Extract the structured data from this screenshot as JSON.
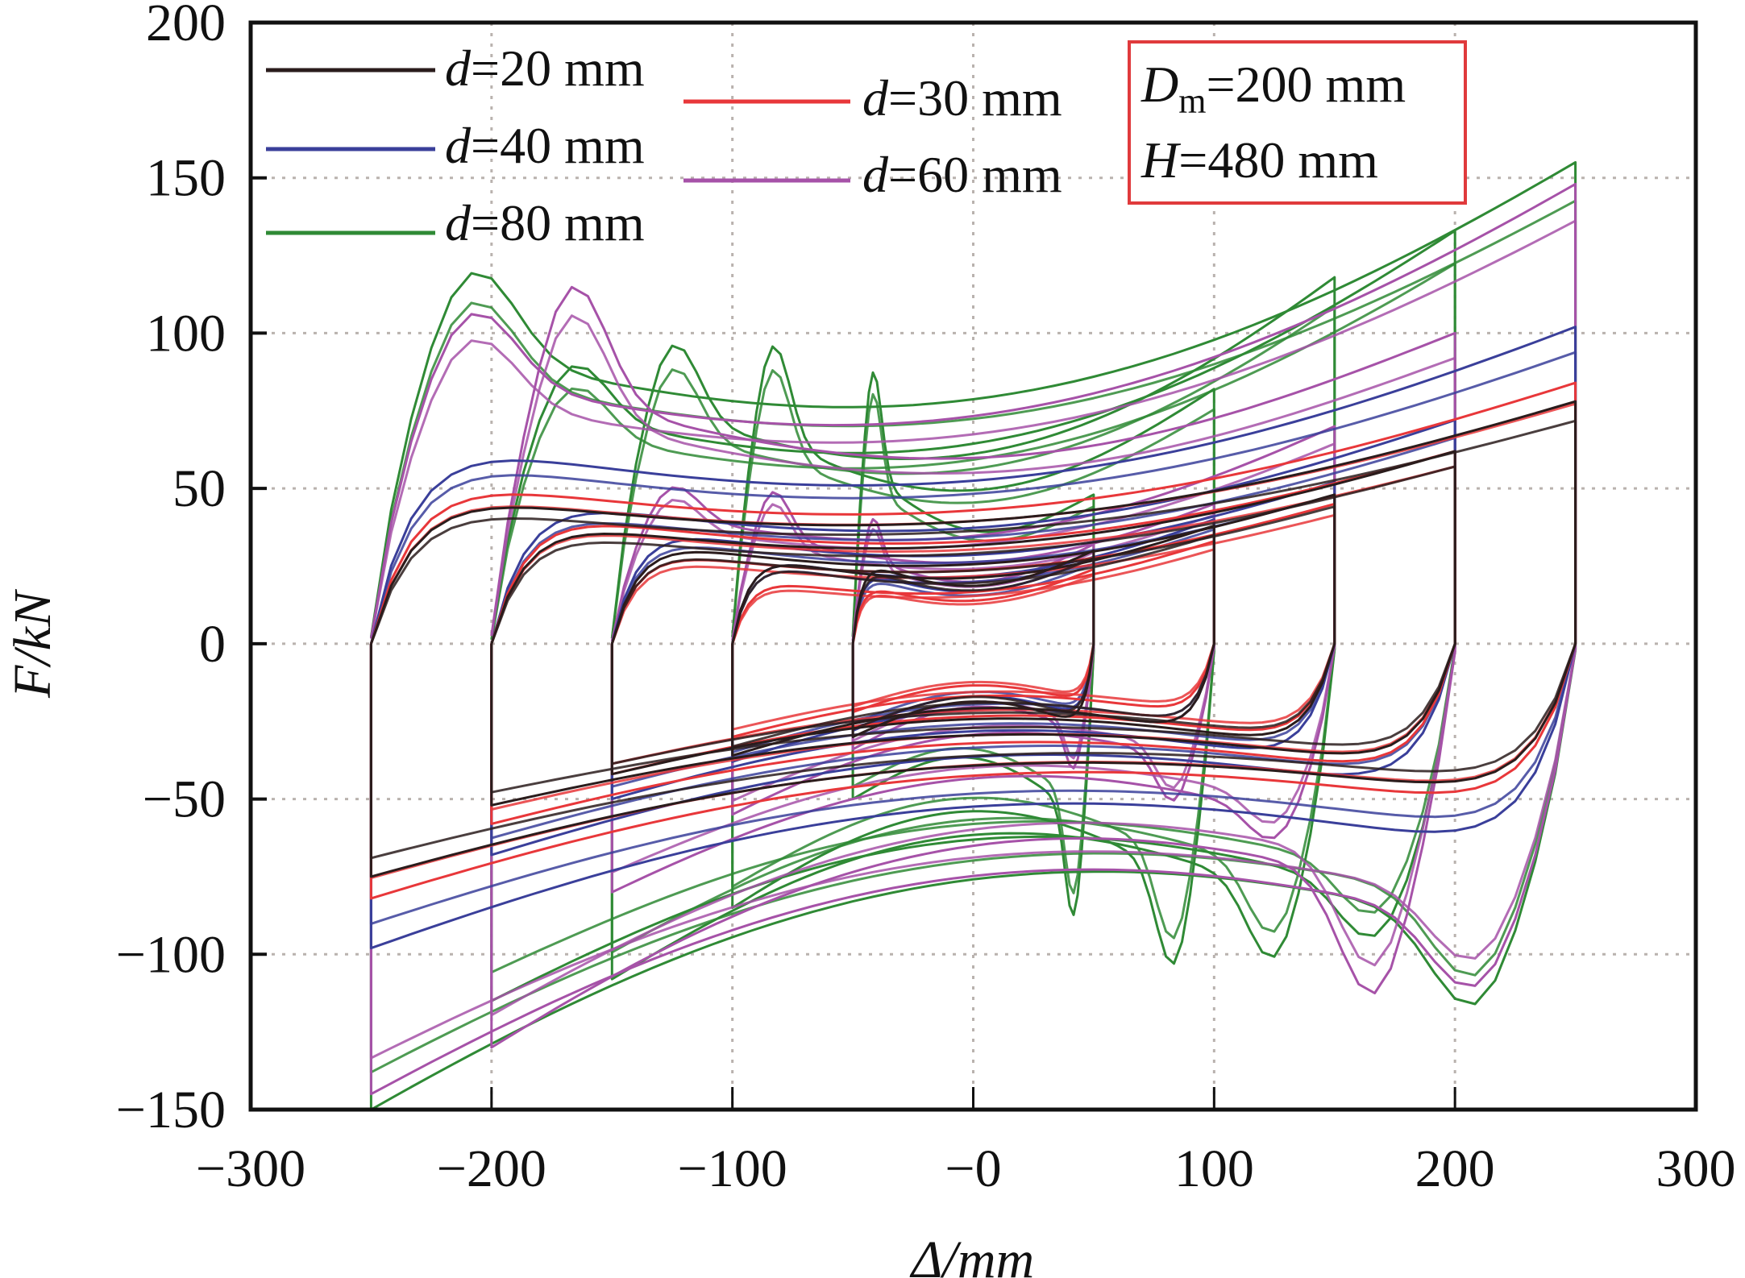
{
  "chart_data": {
    "type": "line",
    "title": "",
    "xlabel": "Δ/mm",
    "ylabel": "F/kN",
    "xlim": [
      -300,
      300
    ],
    "ylim": [
      -150,
      200
    ],
    "xticks": [
      -300,
      -200,
      -100,
      0,
      100,
      200,
      300
    ],
    "xtick_labels": [
      "−300",
      "−200",
      "−100",
      "−0",
      "100",
      "200",
      "300"
    ],
    "yticks": [
      200,
      150,
      100,
      50,
      0,
      -50,
      -100,
      -150
    ],
    "ytick_labels": [
      "200",
      "150",
      "100",
      "50",
      "0",
      "−50",
      "−100",
      "−150"
    ],
    "grid": true,
    "grid_x": [
      -200,
      -100,
      0,
      100,
      200
    ],
    "grid_y": [
      150,
      100,
      50,
      0,
      -50,
      -100
    ],
    "legend_position": "top-left",
    "annotation": {
      "line1_main": "D",
      "line1_sub": "m",
      "line1_rest": "=200 mm",
      "line2_italic": "H",
      "line2_rest": "=480 mm",
      "border_color": "#e03a3c"
    },
    "loop_amplitudes_mm": [
      50,
      100,
      150,
      200,
      250
    ],
    "series": [
      {
        "name": "d=20 mm",
        "d_label_italic": "d",
        "d_label_rest": "=20 mm",
        "color": "#2a1c1c",
        "loops": [
          {
            "amp": 50,
            "pos_peak": 30,
            "yield": 28,
            "neg_peak": -30,
            "neg_yield": -28
          },
          {
            "amp": 100,
            "pos_peak": 38,
            "yield": 30,
            "neg_peak": -36,
            "neg_yield": -30
          },
          {
            "amp": 150,
            "pos_peak": 48,
            "yield": 35,
            "neg_peak": -42,
            "neg_yield": -35
          },
          {
            "amp": 200,
            "pos_peak": 62,
            "yield": 42,
            "neg_peak": -52,
            "neg_yield": -42
          },
          {
            "amp": 250,
            "pos_peak": 78,
            "yield": 52,
            "neg_peak": -75,
            "neg_yield": -53
          }
        ]
      },
      {
        "name": "d=30 mm",
        "d_label_italic": "d",
        "d_label_rest": "=30 mm",
        "color": "#e8373a",
        "loops": [
          {
            "amp": 50,
            "pos_peak": 24,
            "yield": 20,
            "neg_peak": -22,
            "neg_yield": -20
          },
          {
            "amp": 100,
            "pos_peak": 33,
            "yield": 22,
            "neg_peak": -30,
            "neg_yield": -24
          },
          {
            "amp": 150,
            "pos_peak": 45,
            "yield": 32,
            "neg_peak": -42,
            "neg_yield": -33
          },
          {
            "amp": 200,
            "pos_peak": 62,
            "yield": 45,
            "neg_peak": -58,
            "neg_yield": -45
          },
          {
            "amp": 250,
            "pos_peak": 84,
            "yield": 57,
            "neg_peak": -82,
            "neg_yield": -57
          }
        ]
      },
      {
        "name": "d=40 mm",
        "d_label_italic": "d",
        "d_label_rest": "=40 mm",
        "color": "#3a3f9a",
        "loops": [
          {
            "amp": 50,
            "pos_peak": 28,
            "yield": 25,
            "neg_peak": -28,
            "neg_yield": -25
          },
          {
            "amp": 100,
            "pos_peak": 40,
            "yield": 30,
            "neg_peak": -38,
            "neg_yield": -30
          },
          {
            "amp": 150,
            "pos_peak": 52,
            "yield": 40,
            "neg_peak": -50,
            "neg_yield": -40
          },
          {
            "amp": 200,
            "pos_peak": 72,
            "yield": 50,
            "neg_peak": -68,
            "neg_yield": -50
          },
          {
            "amp": 250,
            "pos_peak": 102,
            "yield": 70,
            "neg_peak": -98,
            "neg_yield": -72
          }
        ]
      },
      {
        "name": "d=60 mm",
        "d_label_italic": "d",
        "d_label_rest": "=60 mm",
        "color": "#a652a8",
        "loops": [
          {
            "amp": 50,
            "pos_peak": 32,
            "yield": 30,
            "neg_peak": -34,
            "neg_yield": -30
          },
          {
            "amp": 100,
            "pos_peak": 45,
            "yield": 38,
            "neg_peak": -55,
            "neg_yield": -40
          },
          {
            "amp": 150,
            "pos_peak": 70,
            "yield": 45,
            "neg_peak": -80,
            "neg_yield": -60
          },
          {
            "amp": 200,
            "pos_peak": 100,
            "yield": 88,
            "neg_peak": -130,
            "neg_yield": -85
          },
          {
            "amp": 250,
            "pos_peak": 148,
            "yield": 95,
            "neg_peak": -145,
            "neg_yield": -100
          }
        ]
      },
      {
        "name": "d=80 mm",
        "d_label_italic": "d",
        "d_label_rest": "=80 mm",
        "color": "#2f8a35",
        "loops": [
          {
            "amp": 50,
            "pos_peak": 48,
            "yield": 60,
            "neg_peak": -50,
            "neg_yield": -60
          },
          {
            "amp": 100,
            "pos_peak": 82,
            "yield": 73,
            "neg_peak": -85,
            "neg_yield": -82
          },
          {
            "amp": 150,
            "pos_peak": 118,
            "yield": 82,
            "neg_peak": -108,
            "neg_yield": -88
          },
          {
            "amp": 200,
            "pos_peak": 133,
            "yield": 82,
            "neg_peak": -115,
            "neg_yield": -88
          },
          {
            "amp": 250,
            "pos_peak": 155,
            "yield": 104,
            "neg_peak": -150,
            "neg_yield": -100
          }
        ]
      }
    ]
  }
}
